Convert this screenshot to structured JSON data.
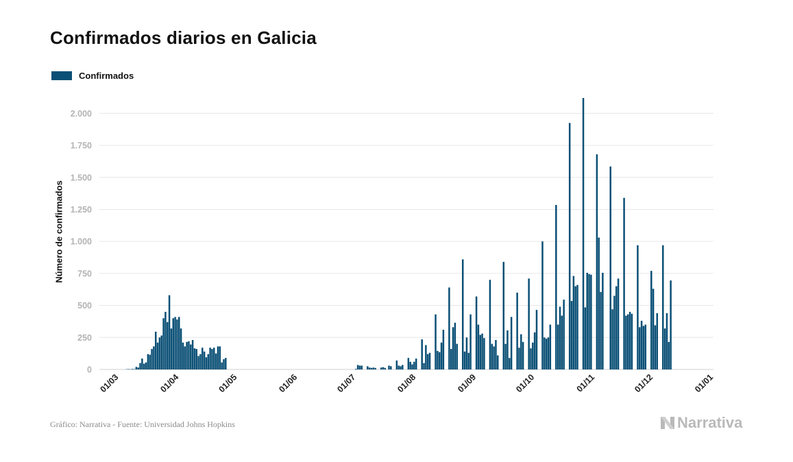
{
  "title": "Confirmados diarios en Galicia",
  "legend": {
    "label": "Confirmados"
  },
  "colors": {
    "bar": "#0a4f75",
    "grid": "#e6e6e6",
    "tick_text": "#b3b3b3"
  },
  "footer": {
    "source": "Gráfico: Narrativa - Fuente: Universidad Johns Hopkins",
    "brand": "Narrativa",
    "brand_icon": "narrativa-logo-icon"
  },
  "chart_data": {
    "type": "bar",
    "title": "Confirmados diarios en Galicia",
    "xlabel": "",
    "ylabel": "Número de confirmados",
    "ylim": [
      0,
      2200
    ],
    "grid": true,
    "legend_placement": "top-left",
    "yticks": [
      0,
      250,
      500,
      750,
      1000,
      1250,
      1500,
      1750,
      2000
    ],
    "ytick_labels": [
      "0",
      "250",
      "500",
      "750",
      "1.000",
      "1.250",
      "1.500",
      "1.750",
      "2.000"
    ],
    "x_range": [
      "2020-02-20",
      "2021-01-01"
    ],
    "xticks": [
      "2020-03-01",
      "2020-04-01",
      "2020-05-01",
      "2020-06-01",
      "2020-07-01",
      "2020-08-01",
      "2020-09-01",
      "2020-10-01",
      "2020-11-01",
      "2020-12-01",
      "2021-01-01"
    ],
    "xtick_labels": [
      "01/03",
      "01/04",
      "01/05",
      "01/06",
      "01/07",
      "01/08",
      "01/09",
      "01/10",
      "01/11",
      "01/12",
      "01/01"
    ],
    "series": [
      {
        "name": "Confirmados",
        "points": [
          [
            "2020-03-05",
            2
          ],
          [
            "2020-03-06",
            3
          ],
          [
            "2020-03-07",
            2
          ],
          [
            "2020-03-08",
            4
          ],
          [
            "2020-03-09",
            3
          ],
          [
            "2020-03-10",
            20
          ],
          [
            "2020-03-11",
            15
          ],
          [
            "2020-03-12",
            50
          ],
          [
            "2020-03-13",
            85
          ],
          [
            "2020-03-14",
            45
          ],
          [
            "2020-03-15",
            55
          ],
          [
            "2020-03-16",
            120
          ],
          [
            "2020-03-17",
            115
          ],
          [
            "2020-03-18",
            160
          ],
          [
            "2020-03-19",
            180
          ],
          [
            "2020-03-20",
            295
          ],
          [
            "2020-03-21",
            210
          ],
          [
            "2020-03-22",
            250
          ],
          [
            "2020-03-23",
            265
          ],
          [
            "2020-03-24",
            400
          ],
          [
            "2020-03-25",
            450
          ],
          [
            "2020-03-26",
            370
          ],
          [
            "2020-03-27",
            580
          ],
          [
            "2020-03-28",
            320
          ],
          [
            "2020-03-29",
            400
          ],
          [
            "2020-03-30",
            410
          ],
          [
            "2020-03-31",
            390
          ],
          [
            "2020-04-01",
            410
          ],
          [
            "2020-04-02",
            320
          ],
          [
            "2020-04-03",
            210
          ],
          [
            "2020-04-04",
            180
          ],
          [
            "2020-04-05",
            215
          ],
          [
            "2020-04-06",
            220
          ],
          [
            "2020-04-07",
            195
          ],
          [
            "2020-04-08",
            230
          ],
          [
            "2020-04-09",
            165
          ],
          [
            "2020-04-10",
            160
          ],
          [
            "2020-04-11",
            105
          ],
          [
            "2020-04-12",
            120
          ],
          [
            "2020-04-13",
            170
          ],
          [
            "2020-04-14",
            140
          ],
          [
            "2020-04-15",
            95
          ],
          [
            "2020-04-16",
            120
          ],
          [
            "2020-04-17",
            170
          ],
          [
            "2020-04-18",
            160
          ],
          [
            "2020-04-19",
            170
          ],
          [
            "2020-04-20",
            125
          ],
          [
            "2020-04-21",
            180
          ],
          [
            "2020-04-22",
            180
          ],
          [
            "2020-04-23",
            55
          ],
          [
            "2020-04-24",
            80
          ],
          [
            "2020-04-25",
            90
          ],
          [
            "2020-07-01",
            5
          ],
          [
            "2020-07-02",
            35
          ],
          [
            "2020-07-03",
            30
          ],
          [
            "2020-07-04",
            30
          ],
          [
            "2020-07-07",
            25
          ],
          [
            "2020-07-08",
            15
          ],
          [
            "2020-07-09",
            12
          ],
          [
            "2020-07-10",
            15
          ],
          [
            "2020-07-11",
            12
          ],
          [
            "2020-07-14",
            15
          ],
          [
            "2020-07-15",
            18
          ],
          [
            "2020-07-16",
            12
          ],
          [
            "2020-07-18",
            30
          ],
          [
            "2020-07-19",
            25
          ],
          [
            "2020-07-22",
            70
          ],
          [
            "2020-07-23",
            30
          ],
          [
            "2020-07-24",
            25
          ],
          [
            "2020-07-25",
            35
          ],
          [
            "2020-07-28",
            90
          ],
          [
            "2020-07-29",
            60
          ],
          [
            "2020-07-30",
            40
          ],
          [
            "2020-07-31",
            60
          ],
          [
            "2020-08-01",
            85
          ],
          [
            "2020-08-04",
            235
          ],
          [
            "2020-08-05",
            50
          ],
          [
            "2020-08-06",
            190
          ],
          [
            "2020-08-07",
            120
          ],
          [
            "2020-08-08",
            130
          ],
          [
            "2020-08-11",
            430
          ],
          [
            "2020-08-12",
            145
          ],
          [
            "2020-08-13",
            135
          ],
          [
            "2020-08-14",
            210
          ],
          [
            "2020-08-15",
            310
          ],
          [
            "2020-08-18",
            640
          ],
          [
            "2020-08-19",
            160
          ],
          [
            "2020-08-20",
            330
          ],
          [
            "2020-08-21",
            365
          ],
          [
            "2020-08-22",
            200
          ],
          [
            "2020-08-25",
            860
          ],
          [
            "2020-08-26",
            140
          ],
          [
            "2020-08-27",
            250
          ],
          [
            "2020-08-28",
            130
          ],
          [
            "2020-08-29",
            430
          ],
          [
            "2020-09-01",
            570
          ],
          [
            "2020-09-02",
            350
          ],
          [
            "2020-09-03",
            270
          ],
          [
            "2020-09-04",
            280
          ],
          [
            "2020-09-05",
            245
          ],
          [
            "2020-09-08",
            700
          ],
          [
            "2020-09-09",
            200
          ],
          [
            "2020-09-10",
            180
          ],
          [
            "2020-09-11",
            230
          ],
          [
            "2020-09-12",
            110
          ],
          [
            "2020-09-15",
            840
          ],
          [
            "2020-09-16",
            200
          ],
          [
            "2020-09-17",
            305
          ],
          [
            "2020-09-18",
            90
          ],
          [
            "2020-09-19",
            410
          ],
          [
            "2020-09-22",
            600
          ],
          [
            "2020-09-23",
            170
          ],
          [
            "2020-09-24",
            275
          ],
          [
            "2020-09-25",
            215
          ],
          [
            "2020-09-28",
            710
          ],
          [
            "2020-09-29",
            165
          ],
          [
            "2020-09-30",
            210
          ],
          [
            "2020-10-01",
            290
          ],
          [
            "2020-10-02",
            465
          ],
          [
            "2020-10-05",
            1000
          ],
          [
            "2020-10-06",
            250
          ],
          [
            "2020-10-07",
            240
          ],
          [
            "2020-10-08",
            250
          ],
          [
            "2020-10-09",
            350
          ],
          [
            "2020-10-12",
            1285
          ],
          [
            "2020-10-13",
            350
          ],
          [
            "2020-10-14",
            490
          ],
          [
            "2020-10-15",
            420
          ],
          [
            "2020-10-16",
            545
          ],
          [
            "2020-10-19",
            1925
          ],
          [
            "2020-10-20",
            535
          ],
          [
            "2020-10-21",
            730
          ],
          [
            "2020-10-22",
            650
          ],
          [
            "2020-10-23",
            660
          ],
          [
            "2020-10-26",
            2120
          ],
          [
            "2020-10-27",
            485
          ],
          [
            "2020-10-28",
            755
          ],
          [
            "2020-10-29",
            745
          ],
          [
            "2020-10-30",
            740
          ],
          [
            "2020-11-02",
            1680
          ],
          [
            "2020-11-03",
            1030
          ],
          [
            "2020-11-04",
            605
          ],
          [
            "2020-11-05",
            755
          ],
          [
            "2020-11-09",
            1585
          ],
          [
            "2020-11-10",
            470
          ],
          [
            "2020-11-11",
            575
          ],
          [
            "2020-11-12",
            650
          ],
          [
            "2020-11-13",
            710
          ],
          [
            "2020-11-16",
            1340
          ],
          [
            "2020-11-17",
            420
          ],
          [
            "2020-11-18",
            430
          ],
          [
            "2020-11-19",
            450
          ],
          [
            "2020-11-20",
            435
          ],
          [
            "2020-11-23",
            970
          ],
          [
            "2020-11-24",
            330
          ],
          [
            "2020-11-25",
            380
          ],
          [
            "2020-11-26",
            340
          ],
          [
            "2020-11-27",
            350
          ],
          [
            "2020-11-30",
            770
          ],
          [
            "2020-12-01",
            630
          ],
          [
            "2020-12-02",
            345
          ],
          [
            "2020-12-03",
            440
          ],
          [
            "2020-12-06",
            970
          ],
          [
            "2020-12-07",
            320
          ],
          [
            "2020-12-08",
            440
          ],
          [
            "2020-12-09",
            215
          ],
          [
            "2020-12-10",
            695
          ]
        ]
      }
    ]
  }
}
